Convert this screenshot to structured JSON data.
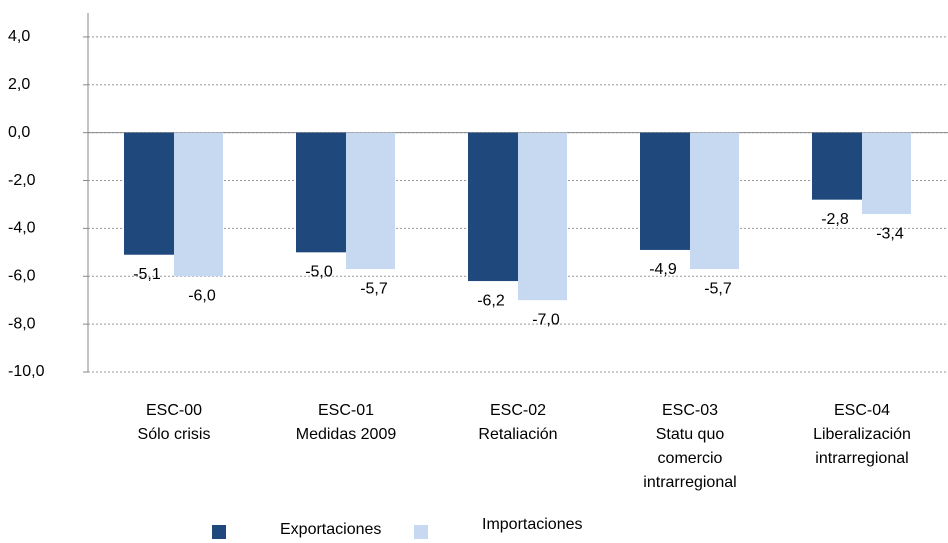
{
  "chart_data": {
    "type": "bar",
    "categories": [
      "ESC-00\nSólo crisis",
      "ESC-01\nMedidas 2009",
      "ESC-02\nRetaliación",
      "ESC-03\nStatu quo\ncomercio\nintrarregional",
      "ESC-04\nLiberalización\nintrarregional"
    ],
    "series": [
      {
        "name": "Exportaciones",
        "color": "#1f497d",
        "values": [
          -5.1,
          -5.0,
          -6.2,
          -4.9,
          -2.8
        ],
        "value_labels": [
          "-5,1",
          "-5,0",
          "-6,2",
          "-4,9",
          "-2,8"
        ]
      },
      {
        "name": "Importaciones",
        "color": "#c6d9f1",
        "values": [
          -6.0,
          -5.7,
          -7.0,
          -5.7,
          -3.4
        ],
        "value_labels": [
          "-6,0",
          "-5,7",
          "-7,0",
          "-5,7",
          "-3,4"
        ]
      }
    ],
    "ylim": [
      -10,
      5
    ],
    "yticks": [
      {
        "value": -10,
        "label": "-10,0"
      },
      {
        "value": -8,
        "label": "-8,0"
      },
      {
        "value": -6,
        "label": "-6,0"
      },
      {
        "value": -4,
        "label": "-4,0"
      },
      {
        "value": -2,
        "label": "-2,0"
      },
      {
        "value": 0,
        "label": "0,0"
      },
      {
        "value": 2,
        "label": "2,0"
      },
      {
        "value": 4,
        "label": "4,0"
      }
    ],
    "grid": true,
    "legend": "bottom"
  }
}
